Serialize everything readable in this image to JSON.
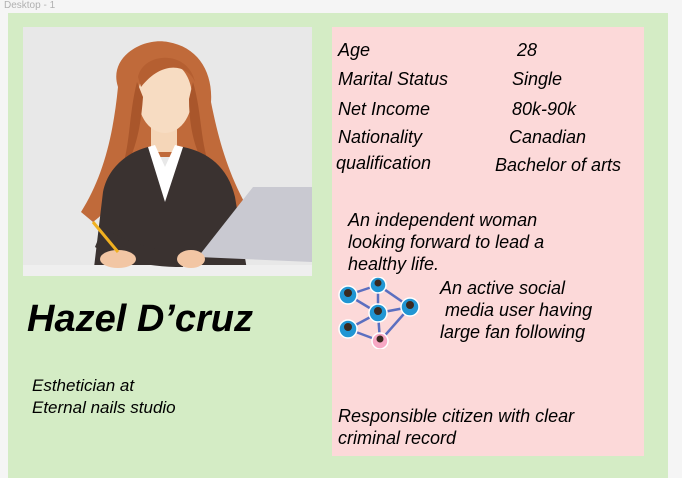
{
  "frame": {
    "label": "Desktop - 1"
  },
  "persona": {
    "name": "Hazel D’cruz",
    "occupation_lines": [
      "Esthetician at",
      "Eternal nails studio"
    ]
  },
  "details": [
    {
      "label": "Age",
      "value": "28"
    },
    {
      "label": "Marital Status",
      "value": "Single"
    },
    {
      "label": "Net Income",
      "value": "80k-90k"
    },
    {
      "label": "Nationality",
      "value": "Canadian"
    },
    {
      "label": "qualification",
      "value": "Bachelor of arts"
    }
  ],
  "bio": {
    "independent_lines": [
      "An independent woman",
      "looking forward to lead a",
      "healthy life."
    ],
    "social_lines": [
      "An active social",
      " media user having",
      "large fan following"
    ],
    "citizen_lines": [
      "Responsible citizen with clear",
      "criminal record"
    ]
  },
  "colors": {
    "artboard": "#d4ecc5",
    "panel": "#fcd9d9",
    "network_node": "#2196d3",
    "network_link": "#5b6fc0"
  },
  "icons": {
    "portrait": "woman-at-laptop-illustration",
    "network": "social-network-icon"
  }
}
